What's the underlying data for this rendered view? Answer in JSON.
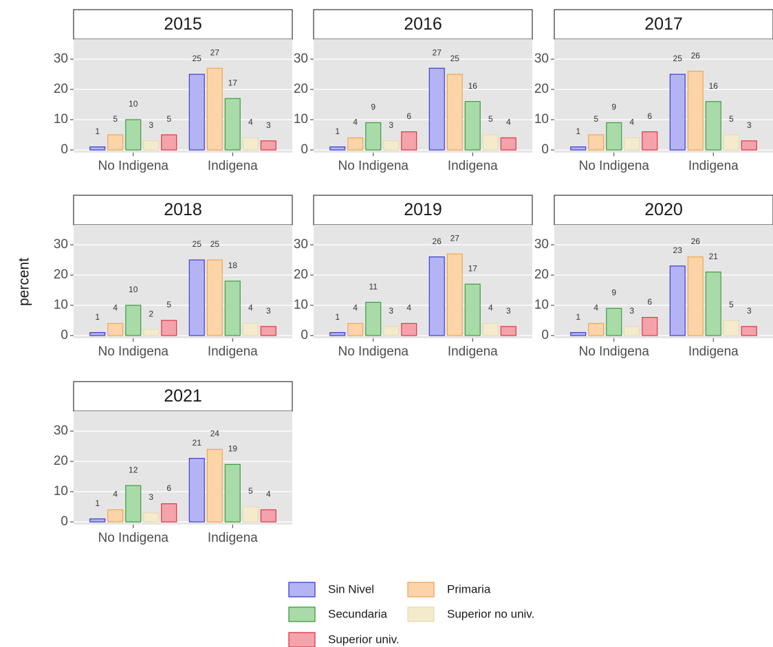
{
  "ylabel": "percent",
  "chart_data": [
    {
      "type": "bar",
      "title": "2015",
      "categories": [
        "No Indigena",
        "Indigena"
      ],
      "ylim": [
        -0.9,
        36.6
      ],
      "yticks": [
        0,
        10,
        20,
        30
      ],
      "grid": true,
      "series": [
        {
          "name": "Sin Nivel",
          "color": "#b4b4f4",
          "edgecolor": "#3c3cd0",
          "values": [
            1,
            25
          ]
        },
        {
          "name": "Primaria",
          "color": "#fcd4a8",
          "edgecolor": "#f0a455",
          "values": [
            5,
            27
          ]
        },
        {
          "name": "Secundaria",
          "color": "#a9dba9",
          "edgecolor": "#3d9c3d",
          "values": [
            10,
            17
          ]
        },
        {
          "name": "Superior no univ.",
          "color": "#f4ebcd",
          "edgecolor": "#e6dcb4",
          "values": [
            3,
            4
          ]
        },
        {
          "name": "Superior univ.",
          "color": "#f4a3ab",
          "edgecolor": "#e03444",
          "values": [
            5,
            3
          ]
        }
      ]
    },
    {
      "type": "bar",
      "title": "2016",
      "categories": [
        "No Indigena",
        "Indigena"
      ],
      "ylim": [
        -0.9,
        36.6
      ],
      "yticks": [
        0,
        10,
        20,
        30
      ],
      "grid": true,
      "series": [
        {
          "name": "Sin Nivel",
          "color": "#b4b4f4",
          "edgecolor": "#3c3cd0",
          "values": [
            1,
            27
          ]
        },
        {
          "name": "Primaria",
          "color": "#fcd4a8",
          "edgecolor": "#f0a455",
          "values": [
            4,
            25
          ]
        },
        {
          "name": "Secundaria",
          "color": "#a9dba9",
          "edgecolor": "#3d9c3d",
          "values": [
            9,
            16
          ]
        },
        {
          "name": "Superior no univ.",
          "color": "#f4ebcd",
          "edgecolor": "#e6dcb4",
          "values": [
            3,
            5
          ]
        },
        {
          "name": "Superior univ.",
          "color": "#f4a3ab",
          "edgecolor": "#e03444",
          "values": [
            6,
            4
          ]
        }
      ]
    },
    {
      "type": "bar",
      "title": "2017",
      "categories": [
        "No Indigena",
        "Indigena"
      ],
      "ylim": [
        -0.9,
        36.6
      ],
      "yticks": [
        0,
        10,
        20,
        30
      ],
      "grid": true,
      "series": [
        {
          "name": "Sin Nivel",
          "color": "#b4b4f4",
          "edgecolor": "#3c3cd0",
          "values": [
            1,
            25
          ]
        },
        {
          "name": "Primaria",
          "color": "#fcd4a8",
          "edgecolor": "#f0a455",
          "values": [
            5,
            26
          ]
        },
        {
          "name": "Secundaria",
          "color": "#a9dba9",
          "edgecolor": "#3d9c3d",
          "values": [
            9,
            16
          ]
        },
        {
          "name": "Superior no univ.",
          "color": "#f4ebcd",
          "edgecolor": "#e6dcb4",
          "values": [
            4,
            5
          ]
        },
        {
          "name": "Superior univ.",
          "color": "#f4a3ab",
          "edgecolor": "#e03444",
          "values": [
            6,
            3
          ]
        }
      ]
    },
    {
      "type": "bar",
      "title": "2018",
      "categories": [
        "No Indigena",
        "Indigena"
      ],
      "ylim": [
        -0.9,
        36.6
      ],
      "yticks": [
        0,
        10,
        20,
        30
      ],
      "grid": true,
      "series": [
        {
          "name": "Sin Nivel",
          "color": "#b4b4f4",
          "edgecolor": "#3c3cd0",
          "values": [
            1,
            25
          ]
        },
        {
          "name": "Primaria",
          "color": "#fcd4a8",
          "edgecolor": "#f0a455",
          "values": [
            4,
            25
          ]
        },
        {
          "name": "Secundaria",
          "color": "#a9dba9",
          "edgecolor": "#3d9c3d",
          "values": [
            10,
            18
          ]
        },
        {
          "name": "Superior no univ.",
          "color": "#f4ebcd",
          "edgecolor": "#e6dcb4",
          "values": [
            2,
            4
          ]
        },
        {
          "name": "Superior univ.",
          "color": "#f4a3ab",
          "edgecolor": "#e03444",
          "values": [
            5,
            3
          ]
        }
      ]
    },
    {
      "type": "bar",
      "title": "2019",
      "categories": [
        "No Indigena",
        "Indigena"
      ],
      "ylim": [
        -0.9,
        36.6
      ],
      "yticks": [
        0,
        10,
        20,
        30
      ],
      "grid": true,
      "series": [
        {
          "name": "Sin Nivel",
          "color": "#b4b4f4",
          "edgecolor": "#3c3cd0",
          "values": [
            1,
            26
          ]
        },
        {
          "name": "Primaria",
          "color": "#fcd4a8",
          "edgecolor": "#f0a455",
          "values": [
            4,
            27
          ]
        },
        {
          "name": "Secundaria",
          "color": "#a9dba9",
          "edgecolor": "#3d9c3d",
          "values": [
            11,
            17
          ]
        },
        {
          "name": "Superior no univ.",
          "color": "#f4ebcd",
          "edgecolor": "#e6dcb4",
          "values": [
            3,
            4
          ]
        },
        {
          "name": "Superior univ.",
          "color": "#f4a3ab",
          "edgecolor": "#e03444",
          "values": [
            4,
            3
          ]
        }
      ]
    },
    {
      "type": "bar",
      "title": "2020",
      "categories": [
        "No Indigena",
        "Indigena"
      ],
      "ylim": [
        -0.9,
        36.6
      ],
      "yticks": [
        0,
        10,
        20,
        30
      ],
      "grid": true,
      "series": [
        {
          "name": "Sin Nivel",
          "color": "#b4b4f4",
          "edgecolor": "#3c3cd0",
          "values": [
            1,
            23
          ]
        },
        {
          "name": "Primaria",
          "color": "#fcd4a8",
          "edgecolor": "#f0a455",
          "values": [
            4,
            26
          ]
        },
        {
          "name": "Secundaria",
          "color": "#a9dba9",
          "edgecolor": "#3d9c3d",
          "values": [
            9,
            21
          ]
        },
        {
          "name": "Superior no univ.",
          "color": "#f4ebcd",
          "edgecolor": "#e6dcb4",
          "values": [
            3,
            5
          ]
        },
        {
          "name": "Superior univ.",
          "color": "#f4a3ab",
          "edgecolor": "#e03444",
          "values": [
            6,
            3
          ]
        }
      ]
    },
    {
      "type": "bar",
      "title": "2021",
      "categories": [
        "No Indigena",
        "Indigena"
      ],
      "ylim": [
        -0.9,
        36.6
      ],
      "yticks": [
        0,
        10,
        20,
        30
      ],
      "grid": true,
      "series": [
        {
          "name": "Sin Nivel",
          "color": "#b4b4f4",
          "edgecolor": "#3c3cd0",
          "values": [
            1,
            21
          ]
        },
        {
          "name": "Primaria",
          "color": "#fcd4a8",
          "edgecolor": "#f0a455",
          "values": [
            4,
            24
          ]
        },
        {
          "name": "Secundaria",
          "color": "#a9dba9",
          "edgecolor": "#3d9c3d",
          "values": [
            12,
            19
          ]
        },
        {
          "name": "Superior no univ.",
          "color": "#f4ebcd",
          "edgecolor": "#e6dcb4",
          "values": [
            3,
            5
          ]
        },
        {
          "name": "Superior univ.",
          "color": "#f4a3ab",
          "edgecolor": "#e03444",
          "values": [
            6,
            4
          ]
        }
      ]
    }
  ]
}
